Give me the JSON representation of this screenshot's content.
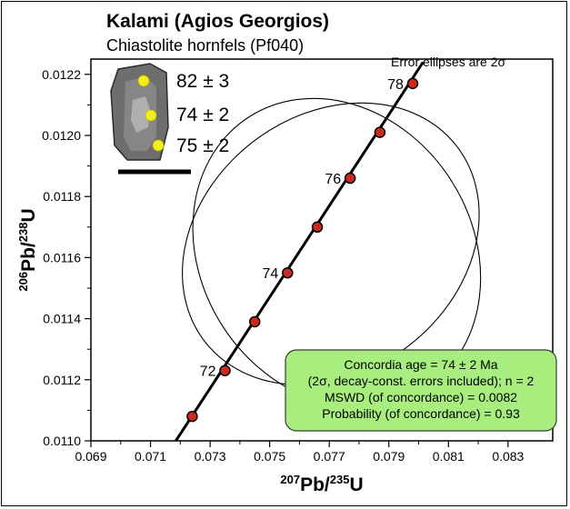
{
  "chart_data": {
    "type": "scatter",
    "title": "Kalami (Agios Georgios)",
    "subtitle": "Chiastolite hornfels (Pf040)",
    "note": "Error ellipses are 2σ",
    "xlabel": {
      "sup": "207",
      "main": "Pb/",
      "sup2": "235",
      "end": "U"
    },
    "ylabel": {
      "sup": "206",
      "main": "Pb/",
      "sup2": "238",
      "end": "U"
    },
    "xlim": [
      0.069,
      0.0845
    ],
    "ylim": [
      0.011,
      0.01225
    ],
    "x_ticks": [
      "0.069",
      "0.071",
      "0.073",
      "0.075",
      "0.077",
      "0.079",
      "0.081",
      "0.083"
    ],
    "y_ticks": [
      "0.0110",
      "0.0112",
      "0.0114",
      "0.0116",
      "0.0118",
      "0.0120",
      "0.0122"
    ],
    "concordia_points": [
      {
        "age": 71,
        "x": 0.0724,
        "y": 0.01108,
        "label": ""
      },
      {
        "age": 72,
        "x": 0.0735,
        "y": 0.01123,
        "label": "72"
      },
      {
        "age": 73,
        "x": 0.0745,
        "y": 0.01139,
        "label": ""
      },
      {
        "age": 74,
        "x": 0.0756,
        "y": 0.01155,
        "label": "74"
      },
      {
        "age": 75,
        "x": 0.0766,
        "y": 0.0117,
        "label": ""
      },
      {
        "age": 76,
        "x": 0.0777,
        "y": 0.01186,
        "label": "76"
      },
      {
        "age": 77,
        "x": 0.0787,
        "y": 0.01201,
        "label": ""
      },
      {
        "age": 78,
        "x": 0.0798,
        "y": 0.01217,
        "label": "78"
      }
    ],
    "concordia_line": {
      "x1": 0.07185,
      "y1": 0.011,
      "x2": 0.08015,
      "y2": 0.01224
    },
    "ellipses": [
      {
        "cx": 0.07705,
        "cy": 0.011645,
        "rx": 0.00535,
        "ry": 0.00042,
        "angle_deg": -38
      },
      {
        "cx": 0.07725,
        "cy": 0.011615,
        "rx": 0.00455,
        "ry": 0.00053,
        "angle_deg": -33
      }
    ],
    "grain_spots": [
      {
        "label": "82 ± 3"
      },
      {
        "label": "74 ± 2"
      },
      {
        "label": "75 ± 2"
      }
    ],
    "result_box": {
      "lines": [
        "Concordia age = 74 ± 2 Ma",
        "(2σ, decay-const. errors included); n = 2",
        "MSWD (of concordance) = 0.0082",
        "Probability (of concordance) = 0.93"
      ]
    },
    "colors": {
      "point_fill": "#cc2a1e",
      "point_stroke": "#000000",
      "box_fill": "#a8ee7f",
      "spot_fill": "#f2ee1a",
      "grain_fill": "#6e6e6e"
    },
    "grid": false
  }
}
